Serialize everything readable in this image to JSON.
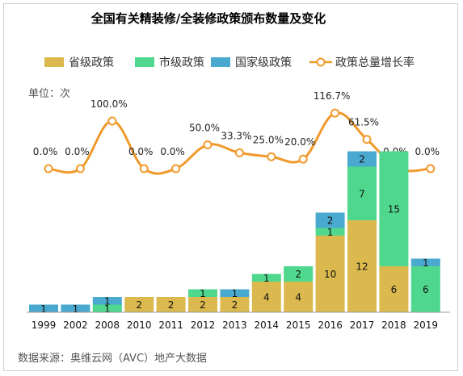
{
  "chart_data": {
    "type": "bar",
    "title": "全国有关精装修/全装修政策颁布数量及变化",
    "unit_label": "单位：次",
    "source": "数据来源：奥维云网（AVC）地产大数据",
    "categories": [
      "1999",
      "2002",
      "2008",
      "2010",
      "2011",
      "2012",
      "2013",
      "2014",
      "2015",
      "2016",
      "2017",
      "2018",
      "2019"
    ],
    "series": [
      {
        "name": "省级政策",
        "kind": "bar",
        "color": "#dbb94e",
        "values": [
          0,
          0,
          0,
          2,
          2,
          2,
          2,
          4,
          4,
          10,
          12,
          6,
          0
        ]
      },
      {
        "name": "市级政策",
        "kind": "bar",
        "color": "#4fd88d",
        "values": [
          0,
          0,
          1,
          0,
          0,
          1,
          0,
          1,
          2,
          1,
          7,
          15,
          6
        ]
      },
      {
        "name": "国家级政策",
        "kind": "bar",
        "color": "#4aa9cf",
        "values": [
          1,
          1,
          1,
          0,
          0,
          0,
          1,
          0,
          0,
          2,
          2,
          0,
          1
        ]
      },
      {
        "name": "政策总量增长率",
        "kind": "line",
        "color": "#f09a2c",
        "values": [
          0.0,
          0.0,
          100.0,
          0.0,
          0.0,
          50.0,
          33.3,
          25.0,
          20.0,
          116.7,
          61.5,
          0.0,
          0.0
        ],
        "labels": [
          "0.0%",
          "0.0%",
          "100.0%",
          "0.0%",
          "0.0%",
          "50.0%",
          "33.3%",
          "25.0%",
          "20.0%",
          "116.7%",
          "61.5%",
          "0.0%",
          "0.0%"
        ]
      }
    ],
    "grid": false,
    "legend_position": "top"
  }
}
